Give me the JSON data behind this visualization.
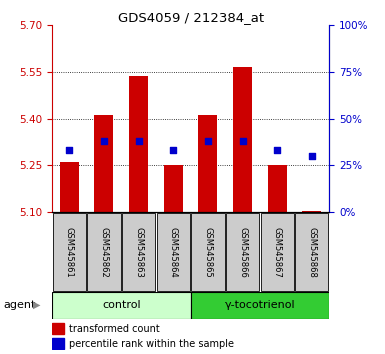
{
  "title": "GDS4059 / 212384_at",
  "samples": [
    "GSM545861",
    "GSM545862",
    "GSM545863",
    "GSM545864",
    "GSM545865",
    "GSM545866",
    "GSM545867",
    "GSM545868"
  ],
  "bar_bottom": 5.1,
  "bar_tops": [
    5.26,
    5.41,
    5.535,
    5.25,
    5.41,
    5.565,
    5.25,
    5.105
  ],
  "percentile_ranks": [
    33,
    38,
    38,
    33,
    38,
    38,
    33,
    30
  ],
  "ylim_left": [
    5.1,
    5.7
  ],
  "ylim_right": [
    0,
    100
  ],
  "yticks_left": [
    5.1,
    5.25,
    5.4,
    5.55,
    5.7
  ],
  "yticks_right": [
    0,
    25,
    50,
    75,
    100
  ],
  "bar_color": "#cc0000",
  "dot_color": "#0000cc",
  "control_samples": 4,
  "gamma_samples": 4,
  "control_label": "control",
  "gamma_label": "γ-tocotrienol",
  "agent_label": "agent",
  "legend_bar": "transformed count",
  "legend_dot": "percentile rank within the sample",
  "control_bg": "#ccffcc",
  "gamma_bg": "#33cc33",
  "tick_bg": "#cccccc",
  "left_tick_color": "#cc0000",
  "right_tick_color": "#0000cc",
  "grid_dotted_ticks": [
    5.25,
    5.4,
    5.55
  ]
}
